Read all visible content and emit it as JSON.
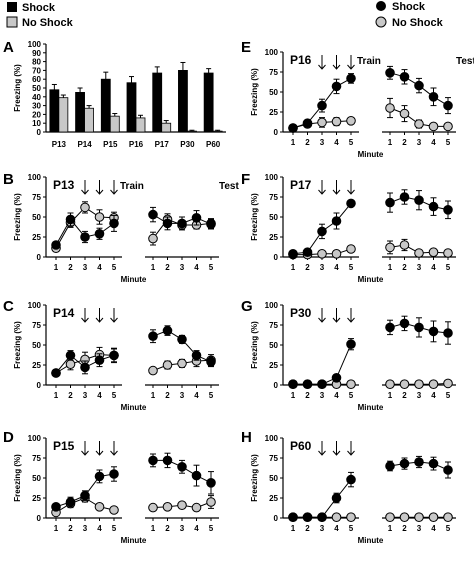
{
  "legend_left": {
    "shock": "Shock",
    "no_shock": "No Shock"
  },
  "legend_right": {
    "shock": "Shock",
    "no_shock": "No Shock"
  },
  "colors": {
    "shock": "#000000",
    "no_shock": "#c8c8c8",
    "axis": "#000000"
  },
  "chart_data": [
    {
      "panel": "A",
      "type": "bar",
      "ylabel": "Freezing (%)",
      "ylim": [
        0,
        100
      ],
      "yticks": [
        0,
        10,
        20,
        30,
        40,
        50,
        60,
        70,
        80,
        90,
        100
      ],
      "categories": [
        "P13",
        "P14",
        "P15",
        "P16",
        "P17",
        "P30",
        "P60"
      ],
      "series": [
        {
          "name": "Shock",
          "values": [
            48,
            45,
            60,
            56,
            67,
            70,
            67
          ],
          "errors": [
            6,
            5,
            8,
            7,
            7,
            9,
            5
          ]
        },
        {
          "name": "No Shock",
          "values": [
            39,
            27,
            18,
            16,
            10,
            1,
            1
          ],
          "errors": [
            3,
            3,
            3,
            3,
            3,
            1,
            1
          ]
        }
      ]
    },
    {
      "panel": "B",
      "type": "line",
      "age": "P13",
      "train_label": "Train",
      "test_label": "Test",
      "xlabel": "Minute",
      "ylabel": "Freezing (%)",
      "ylim": [
        0,
        100
      ],
      "yticks": [
        0,
        25,
        50,
        75,
        100
      ],
      "x": [
        "1",
        "2",
        "3",
        "4",
        "5"
      ],
      "shock_arrows_at": [
        3,
        4,
        5
      ],
      "train": {
        "shock": [
          15,
          47,
          25,
          29,
          42
        ],
        "no_shock": [
          11,
          43,
          62,
          50,
          49
        ],
        "shock_err": [
          3,
          8,
          7,
          7,
          10
        ],
        "no_shock_err": [
          3,
          6,
          7,
          9,
          7
        ]
      },
      "test": {
        "shock": [
          53,
          42,
          42,
          49,
          41
        ],
        "no_shock": [
          23,
          47,
          40,
          40,
          42
        ],
        "shock_err": [
          9,
          8,
          8,
          9,
          6
        ],
        "no_shock_err": [
          8,
          7,
          6,
          5,
          6
        ]
      }
    },
    {
      "panel": "C",
      "type": "line",
      "age": "P14",
      "xlabel": "Minute",
      "ylabel": "Freezing (%)",
      "ylim": [
        0,
        100
      ],
      "yticks": [
        0,
        25,
        50,
        75,
        100
      ],
      "x": [
        "1",
        "2",
        "3",
        "4",
        "5"
      ],
      "shock_arrows_at": [
        3,
        4,
        5
      ],
      "train": {
        "shock": [
          15,
          37,
          22,
          31,
          37
        ],
        "no_shock": [
          15,
          26,
          32,
          38,
          37
        ],
        "shock_err": [
          3,
          6,
          8,
          8,
          9
        ],
        "no_shock_err": [
          3,
          7,
          9,
          9,
          8
        ]
      },
      "test": {
        "shock": [
          61,
          68,
          57,
          37,
          29
        ],
        "no_shock": [
          18,
          25,
          27,
          30,
          31
        ],
        "shock_err": [
          8,
          6,
          5,
          6,
          6
        ],
        "no_shock_err": [
          3,
          5,
          5,
          7,
          7
        ]
      }
    },
    {
      "panel": "D",
      "type": "line",
      "age": "P15",
      "xlabel": "Minute",
      "ylabel": "Freezing (%)",
      "ylim": [
        0,
        100
      ],
      "yticks": [
        0,
        25,
        50,
        75,
        100
      ],
      "x": [
        "1",
        "2",
        "3",
        "4",
        "5"
      ],
      "shock_arrows_at": [
        3,
        4,
        5
      ],
      "train": {
        "shock": [
          14,
          20,
          28,
          52,
          55
        ],
        "no_shock": [
          7,
          18,
          25,
          14,
          10
        ],
        "shock_err": [
          3,
          6,
          6,
          8,
          9
        ],
        "no_shock_err": [
          3,
          5,
          5,
          4,
          3
        ]
      },
      "test": {
        "shock": [
          72,
          72,
          64,
          53,
          44
        ],
        "no_shock": [
          13,
          14,
          16,
          13,
          20
        ],
        "shock_err": [
          8,
          9,
          8,
          13,
          14
        ],
        "no_shock_err": [
          3,
          3,
          3,
          3,
          8
        ]
      }
    },
    {
      "panel": "E",
      "type": "line",
      "age": "P16",
      "train_label": "Train",
      "test_label": "Test",
      "xlabel": "Minute",
      "ylabel": "Freezing (%)",
      "ylim": [
        0,
        100
      ],
      "yticks": [
        0,
        25,
        50,
        75,
        100
      ],
      "x": [
        "1",
        "2",
        "3",
        "4",
        "5"
      ],
      "shock_arrows_at": [
        3,
        4,
        5
      ],
      "train": {
        "shock": [
          5,
          11,
          33,
          57,
          67
        ],
        "no_shock": [
          5,
          10,
          12,
          13,
          14
        ],
        "shock_err": [
          2,
          4,
          8,
          9,
          6
        ],
        "no_shock_err": [
          2,
          4,
          6,
          5,
          4
        ]
      },
      "test": {
        "shock": [
          74,
          69,
          58,
          44,
          33
        ],
        "no_shock": [
          30,
          23,
          10,
          7,
          7
        ],
        "shock_err": [
          8,
          9,
          9,
          11,
          10
        ],
        "no_shock_err": [
          12,
          10,
          5,
          3,
          3
        ]
      }
    },
    {
      "panel": "F",
      "type": "line",
      "age": "P17",
      "xlabel": "Minute",
      "ylabel": "Freezing (%)",
      "ylim": [
        0,
        100
      ],
      "yticks": [
        0,
        25,
        50,
        75,
        100
      ],
      "x": [
        "1",
        "2",
        "3",
        "4",
        "5"
      ],
      "shock_arrows_at": [
        3,
        4,
        5
      ],
      "train": {
        "shock": [
          4,
          6,
          32,
          45,
          67
        ],
        "no_shock": [
          3,
          3,
          4,
          4,
          10
        ],
        "shock_err": [
          2,
          3,
          9,
          10,
          4
        ],
        "no_shock_err": [
          2,
          2,
          2,
          2,
          3
        ]
      },
      "test": {
        "shock": [
          68,
          75,
          71,
          63,
          59
        ],
        "no_shock": [
          12,
          15,
          5,
          6,
          5
        ],
        "shock_err": [
          12,
          9,
          12,
          11,
          11
        ],
        "no_shock_err": [
          8,
          7,
          3,
          3,
          3
        ]
      }
    },
    {
      "panel": "G",
      "type": "line",
      "age": "P30",
      "xlabel": "Minute",
      "ylabel": "Freezing (%)",
      "ylim": [
        0,
        100
      ],
      "yticks": [
        0,
        25,
        50,
        75,
        100
      ],
      "x": [
        "1",
        "2",
        "3",
        "4",
        "5"
      ],
      "shock_arrows_at": [
        3,
        4,
        5
      ],
      "train": {
        "shock": [
          1,
          1,
          1,
          9,
          51
        ],
        "no_shock": [
          1,
          1,
          1,
          1,
          1
        ],
        "shock_err": [
          1,
          1,
          1,
          4,
          7
        ],
        "no_shock_err": [
          1,
          1,
          1,
          1,
          1
        ]
      },
      "test": {
        "shock": [
          72,
          77,
          72,
          67,
          65
        ],
        "no_shock": [
          1,
          1,
          1,
          1,
          2
        ],
        "shock_err": [
          9,
          9,
          12,
          13,
          14
        ],
        "no_shock_err": [
          1,
          1,
          1,
          1,
          2
        ]
      }
    },
    {
      "panel": "H",
      "type": "line",
      "age": "P60",
      "xlabel": "Minute",
      "ylabel": "Freezing (%)",
      "ylim": [
        0,
        100
      ],
      "yticks": [
        0,
        25,
        50,
        75,
        100
      ],
      "x": [
        "1",
        "2",
        "3",
        "4",
        "5"
      ],
      "shock_arrows_at": [
        3,
        4,
        5
      ],
      "train": {
        "shock": [
          1,
          1,
          1,
          25,
          48
        ],
        "no_shock": [
          1,
          1,
          1,
          1,
          1
        ],
        "shock_err": [
          1,
          1,
          1,
          6,
          9
        ],
        "no_shock_err": [
          1,
          1,
          1,
          1,
          1
        ]
      },
      "test": {
        "shock": [
          65,
          68,
          70,
          68,
          60
        ],
        "no_shock": [
          1,
          1,
          1,
          1,
          1
        ],
        "shock_err": [
          6,
          7,
          7,
          8,
          10
        ],
        "no_shock_err": [
          1,
          1,
          1,
          1,
          1
        ]
      }
    }
  ]
}
